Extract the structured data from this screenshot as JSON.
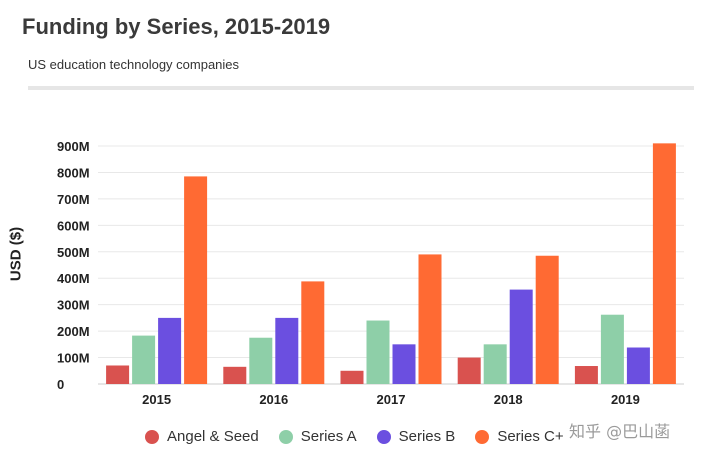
{
  "header": {
    "title": "Funding by Series, 2015-2019",
    "subtitle": "US education technology companies"
  },
  "watermark": "知乎 @巴山菡",
  "chart_data": {
    "type": "bar",
    "title": "Funding by Series, 2015-2019",
    "subtitle": "US education technology companies",
    "xlabel": "",
    "ylabel": "USD ($)",
    "ylim": [
      0,
      900
    ],
    "yunit": "M",
    "y_ticks": [
      "0",
      "100M",
      "200M",
      "300M",
      "400M",
      "500M",
      "600M",
      "700M",
      "800M",
      "900M"
    ],
    "grid": true,
    "legend_position": "bottom",
    "categories": [
      "2015",
      "2016",
      "2017",
      "2018",
      "2019"
    ],
    "series": [
      {
        "name": "Angel & Seed",
        "color": "#d9524f",
        "values": [
          70,
          65,
          50,
          100,
          68
        ]
      },
      {
        "name": "Series A",
        "color": "#8ecfa8",
        "values": [
          183,
          175,
          240,
          150,
          262
        ]
      },
      {
        "name": "Series B",
        "color": "#6b4fe0",
        "values": [
          250,
          250,
          150,
          357,
          138
        ]
      },
      {
        "name": "Series C+",
        "color": "#ff6a33",
        "values": [
          785,
          388,
          490,
          485,
          910
        ]
      }
    ]
  }
}
